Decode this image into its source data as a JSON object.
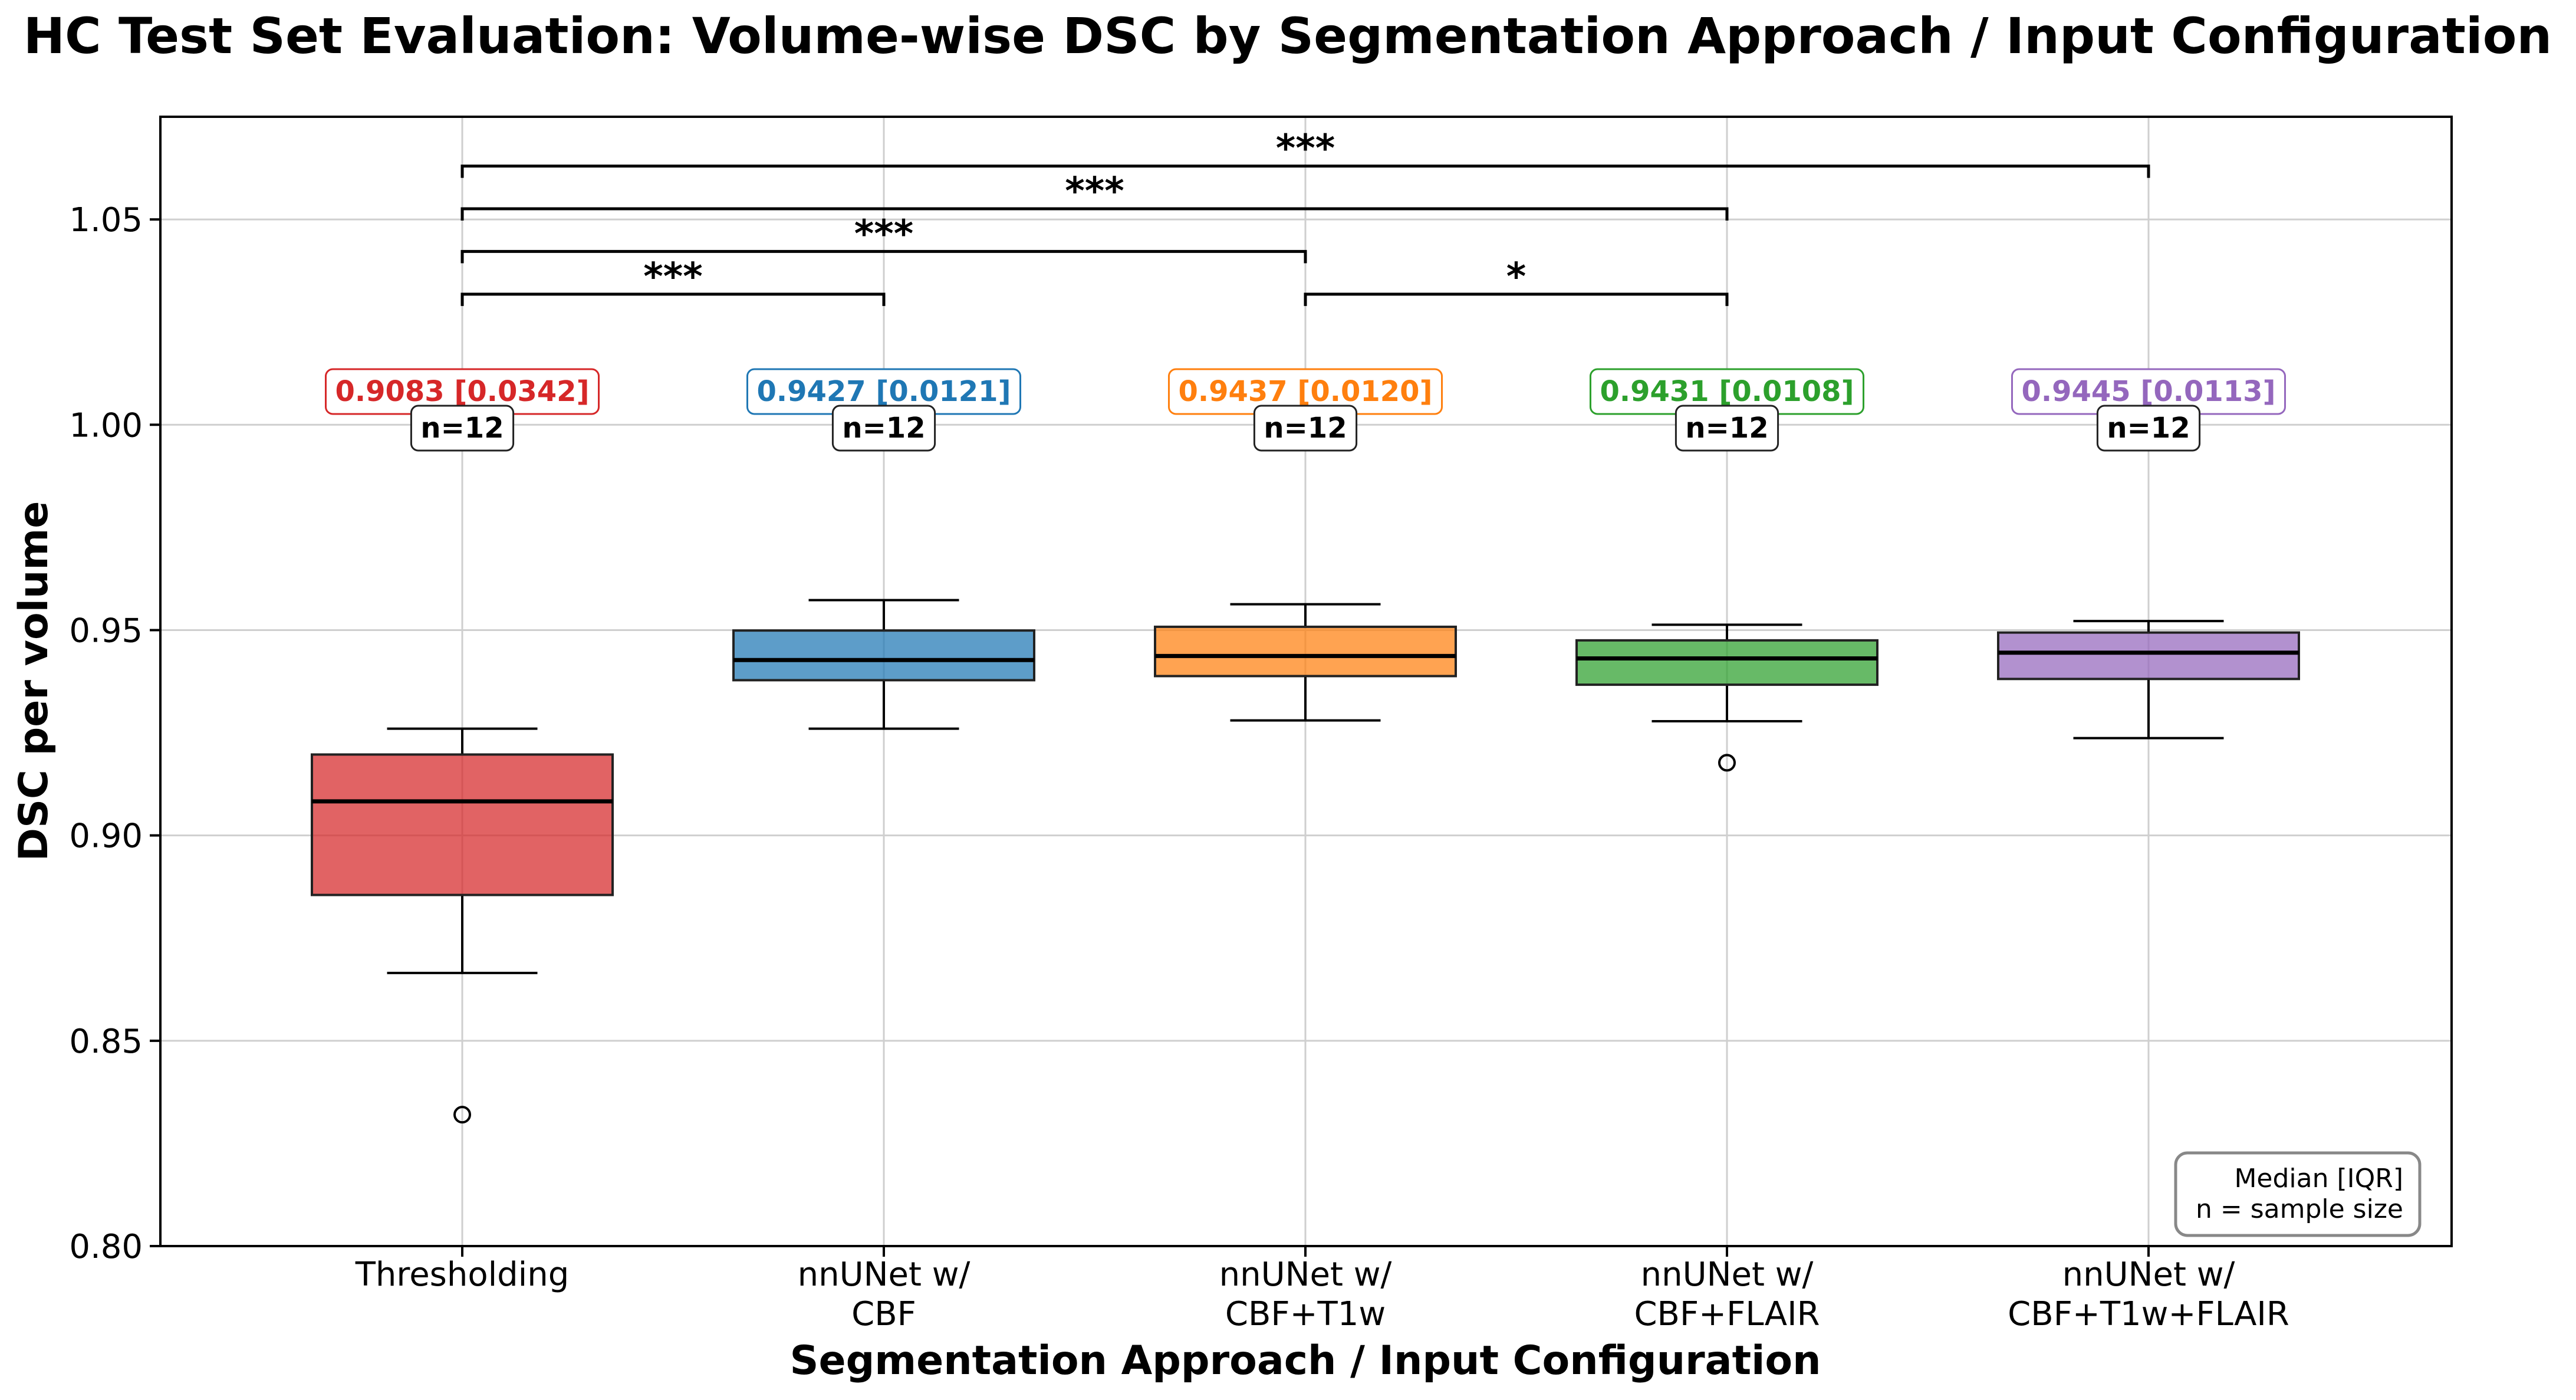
{
  "chart_data": {
    "type": "box",
    "title": "HC Test Set Evaluation: Volume-wise DSC by Segmentation Approach / Input Configuration",
    "xlabel": "Segmentation Approach / Input Configuration",
    "ylabel": "DSC per volume",
    "ylim": [
      0.8,
      1.075
    ],
    "yticks": [
      "0.80",
      "0.85",
      "0.90",
      "0.95",
      "1.00",
      "1.05"
    ],
    "grid": true,
    "categories": [
      {
        "label_lines": [
          "Thresholding"
        ],
        "color": "#d62728",
        "whisker_low": 0.8665,
        "q1": 0.8855,
        "median": 0.9083,
        "q3": 0.9197,
        "whisker_high": 0.926,
        "outliers": [
          0.832
        ],
        "stat": "0.9083 [0.0342]",
        "n": "n=12"
      },
      {
        "label_lines": [
          "nnUNet w/",
          "CBF"
        ],
        "color": "#1f77b4",
        "whisker_low": 0.926,
        "q1": 0.9378,
        "median": 0.9427,
        "q3": 0.9499,
        "whisker_high": 0.9573,
        "outliers": [],
        "stat": "0.9427 [0.0121]",
        "n": "n=12"
      },
      {
        "label_lines": [
          "nnUNet w/",
          "CBF+T1w"
        ],
        "color": "#ff7f0e",
        "whisker_low": 0.928,
        "q1": 0.9388,
        "median": 0.9437,
        "q3": 0.9508,
        "whisker_high": 0.9563,
        "outliers": [],
        "stat": "0.9437 [0.0120]",
        "n": "n=12"
      },
      {
        "label_lines": [
          "nnUNet w/",
          "CBF+FLAIR"
        ],
        "color": "#2ca02c",
        "whisker_low": 0.9278,
        "q1": 0.9367,
        "median": 0.9431,
        "q3": 0.9475,
        "whisker_high": 0.9513,
        "outliers": [
          0.9177
        ],
        "stat": "0.9431 [0.0108]",
        "n": "n=12"
      },
      {
        "label_lines": [
          "nnUNet w/",
          "CBF+T1w+FLAIR"
        ],
        "color": "#9467bd",
        "whisker_low": 0.9237,
        "q1": 0.9381,
        "median": 0.9445,
        "q3": 0.9494,
        "whisker_high": 0.9522,
        "outliers": [],
        "stat": "0.9445 [0.0113]",
        "n": "n=12"
      }
    ],
    "significance": [
      {
        "from": 0,
        "to": 1,
        "y": 1.0318,
        "label": "***"
      },
      {
        "from": 2,
        "to": 3,
        "y": 1.0318,
        "label": "*"
      },
      {
        "from": 0,
        "to": 2,
        "y": 1.0422,
        "label": "***"
      },
      {
        "from": 0,
        "to": 3,
        "y": 1.0526,
        "label": "***"
      },
      {
        "from": 0,
        "to": 4,
        "y": 1.063,
        "label": "***"
      }
    ],
    "legend_note": [
      "Median [IQR]",
      "n = sample size"
    ],
    "legend_position": "bottom-right"
  }
}
